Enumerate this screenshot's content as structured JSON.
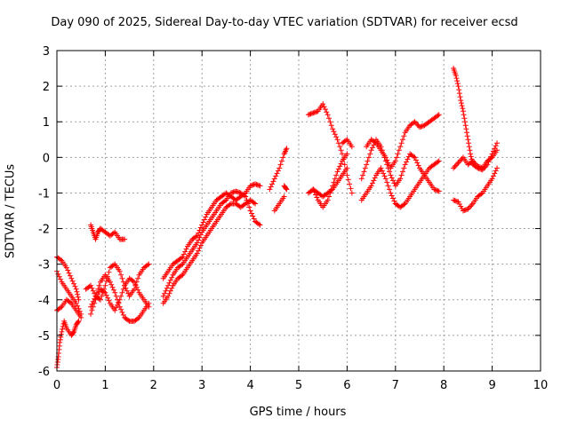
{
  "chart_data": {
    "type": "scatter",
    "title": "Day 090 of 2025, Sidereal Day-to-day VTEC variation (SDTVAR) for receiver ecsd",
    "xlabel": "GPS time / hours",
    "ylabel": "SDTVAR / TECUs",
    "xlim": [
      0,
      10
    ],
    "ylim": [
      -6,
      3
    ],
    "xticks": [
      "0",
      "1",
      "2",
      "3",
      "4",
      "5",
      "6",
      "7",
      "8",
      "9",
      "10"
    ],
    "yticks": [
      "-6",
      "-5",
      "-4",
      "-3",
      "-2",
      "-1",
      "0",
      "1",
      "2",
      "3"
    ],
    "grid": true,
    "marker": "plus",
    "color": "#ff0000",
    "series": [
      {
        "points": [
          [
            0.0,
            -2.8
          ],
          [
            0.1,
            -2.9
          ],
          [
            0.2,
            -3.1
          ],
          [
            0.3,
            -3.4
          ],
          [
            0.4,
            -3.7
          ],
          [
            0.45,
            -4.0
          ],
          [
            0.6,
            -3.7
          ],
          [
            0.7,
            -3.6
          ],
          [
            0.8,
            -3.9
          ],
          [
            0.9,
            -4.0
          ],
          [
            1.0,
            -3.6
          ],
          [
            1.1,
            -3.1
          ],
          [
            1.2,
            -3.0
          ],
          [
            1.3,
            -3.2
          ],
          [
            1.4,
            -3.6
          ],
          [
            1.5,
            -3.9
          ],
          [
            1.6,
            -3.7
          ],
          [
            1.7,
            -3.3
          ],
          [
            1.8,
            -3.1
          ],
          [
            1.9,
            -3.0
          ],
          [
            2.2,
            -3.4
          ],
          [
            2.3,
            -3.2
          ],
          [
            2.4,
            -3.0
          ],
          [
            2.5,
            -2.9
          ],
          [
            2.6,
            -2.8
          ],
          [
            2.7,
            -2.5
          ],
          [
            2.8,
            -2.3
          ],
          [
            2.9,
            -2.2
          ],
          [
            3.0,
            -1.9
          ],
          [
            3.1,
            -1.6
          ],
          [
            3.2,
            -1.4
          ],
          [
            3.3,
            -1.2
          ],
          [
            3.4,
            -1.1
          ],
          [
            3.5,
            -1.0
          ],
          [
            3.6,
            -1.1
          ],
          [
            3.7,
            -1.2
          ],
          [
            3.8,
            -1.1
          ],
          [
            3.9,
            -1.0
          ],
          [
            4.0,
            -0.8
          ],
          [
            4.1,
            -0.75
          ],
          [
            4.2,
            -0.8
          ],
          [
            4.4,
            -0.9
          ],
          [
            4.5,
            -0.6
          ],
          [
            4.6,
            -0.3
          ],
          [
            4.7,
            0.1
          ],
          [
            4.75,
            0.25
          ],
          [
            5.2,
            1.2
          ],
          [
            5.3,
            1.25
          ],
          [
            5.4,
            1.3
          ],
          [
            5.5,
            1.5
          ],
          [
            5.6,
            1.2
          ],
          [
            5.7,
            0.8
          ],
          [
            5.8,
            0.5
          ],
          [
            5.9,
            0.1
          ],
          [
            6.0,
            -0.5
          ],
          [
            6.1,
            -1.0
          ],
          [
            6.4,
            0.3
          ],
          [
            6.5,
            0.5
          ],
          [
            6.6,
            0.4
          ],
          [
            6.7,
            0.2
          ],
          [
            6.8,
            0.0
          ],
          [
            6.9,
            -0.3
          ],
          [
            7.0,
            -0.1
          ],
          [
            7.1,
            0.3
          ],
          [
            7.2,
            0.7
          ],
          [
            7.3,
            0.9
          ],
          [
            7.4,
            1.0
          ],
          [
            7.5,
            0.85
          ],
          [
            7.6,
            0.9
          ],
          [
            7.7,
            1.0
          ],
          [
            7.8,
            1.1
          ],
          [
            7.9,
            1.2
          ],
          [
            8.2,
            2.5
          ],
          [
            8.25,
            2.3
          ],
          [
            8.3,
            2.0
          ],
          [
            8.35,
            1.6
          ],
          [
            8.4,
            1.3
          ],
          [
            8.45,
            0.9
          ],
          [
            8.5,
            0.5
          ],
          [
            8.55,
            0.1
          ],
          [
            8.6,
            -0.2
          ],
          [
            8.7,
            -0.3
          ],
          [
            8.8,
            -0.35
          ],
          [
            8.9,
            -0.2
          ],
          [
            9.0,
            0.1
          ],
          [
            9.1,
            0.4
          ]
        ]
      },
      {
        "points": [
          [
            0.0,
            -3.2
          ],
          [
            0.1,
            -3.5
          ],
          [
            0.2,
            -3.7
          ],
          [
            0.3,
            -3.9
          ],
          [
            0.4,
            -4.1
          ],
          [
            0.5,
            -4.4
          ],
          [
            0.7,
            -4.2
          ],
          [
            0.8,
            -3.9
          ],
          [
            0.9,
            -3.5
          ],
          [
            1.0,
            -3.3
          ],
          [
            1.1,
            -3.5
          ],
          [
            1.2,
            -3.8
          ],
          [
            1.3,
            -4.2
          ],
          [
            1.4,
            -4.5
          ],
          [
            1.5,
            -4.6
          ],
          [
            1.6,
            -4.6
          ],
          [
            1.7,
            -4.5
          ],
          [
            1.8,
            -4.3
          ],
          [
            1.9,
            -4.1
          ],
          [
            2.2,
            -4.1
          ],
          [
            2.3,
            -3.9
          ],
          [
            2.4,
            -3.6
          ],
          [
            2.5,
            -3.4
          ],
          [
            2.6,
            -3.3
          ],
          [
            2.7,
            -3.1
          ],
          [
            2.8,
            -2.9
          ],
          [
            2.9,
            -2.7
          ],
          [
            3.0,
            -2.4
          ],
          [
            3.1,
            -2.2
          ],
          [
            3.2,
            -2.0
          ],
          [
            3.3,
            -1.8
          ],
          [
            3.4,
            -1.6
          ],
          [
            3.5,
            -1.4
          ],
          [
            3.6,
            -1.3
          ],
          [
            3.7,
            -1.3
          ],
          [
            3.8,
            -1.4
          ],
          [
            3.9,
            -1.3
          ],
          [
            4.0,
            -1.2
          ],
          [
            4.1,
            -1.3
          ],
          [
            4.5,
            -1.5
          ],
          [
            4.6,
            -1.3
          ],
          [
            4.7,
            -1.1
          ],
          [
            5.2,
            -1.0
          ],
          [
            5.3,
            -0.9
          ],
          [
            5.4,
            -1.0
          ],
          [
            5.5,
            -1.1
          ],
          [
            5.6,
            -1.0
          ],
          [
            5.7,
            -0.9
          ],
          [
            5.8,
            -0.7
          ],
          [
            5.9,
            -0.5
          ],
          [
            6.0,
            -0.3
          ],
          [
            6.3,
            -1.2
          ],
          [
            6.4,
            -1.0
          ],
          [
            6.5,
            -0.8
          ],
          [
            6.6,
            -0.5
          ],
          [
            6.7,
            -0.3
          ],
          [
            6.8,
            -0.6
          ],
          [
            6.9,
            -1.0
          ],
          [
            7.0,
            -1.3
          ],
          [
            7.1,
            -1.4
          ],
          [
            7.2,
            -1.3
          ],
          [
            7.3,
            -1.1
          ],
          [
            7.4,
            -0.9
          ],
          [
            7.5,
            -0.7
          ],
          [
            7.6,
            -0.5
          ],
          [
            7.7,
            -0.3
          ],
          [
            7.8,
            -0.2
          ],
          [
            7.9,
            -0.1
          ],
          [
            8.2,
            -1.2
          ],
          [
            8.3,
            -1.25
          ],
          [
            8.4,
            -1.5
          ],
          [
            8.5,
            -1.45
          ],
          [
            8.6,
            -1.3
          ],
          [
            8.7,
            -1.1
          ],
          [
            8.8,
            -1.0
          ],
          [
            8.9,
            -0.8
          ],
          [
            9.0,
            -0.6
          ],
          [
            9.1,
            -0.3
          ]
        ]
      },
      {
        "points": [
          [
            0.0,
            -4.3
          ],
          [
            0.1,
            -4.2
          ],
          [
            0.2,
            -4.0
          ],
          [
            0.3,
            -4.1
          ],
          [
            0.4,
            -4.3
          ],
          [
            0.5,
            -4.5
          ],
          [
            0.7,
            -4.4
          ],
          [
            0.8,
            -4.0
          ],
          [
            0.9,
            -3.7
          ],
          [
            1.0,
            -3.8
          ],
          [
            1.1,
            -4.1
          ],
          [
            1.2,
            -4.3
          ],
          [
            1.3,
            -4.0
          ],
          [
            1.4,
            -3.6
          ],
          [
            1.5,
            -3.4
          ],
          [
            1.6,
            -3.5
          ],
          [
            1.7,
            -3.8
          ],
          [
            1.8,
            -4.0
          ],
          [
            1.9,
            -4.2
          ],
          [
            2.2,
            -3.9
          ],
          [
            2.3,
            -3.6
          ],
          [
            2.4,
            -3.3
          ],
          [
            2.5,
            -3.1
          ],
          [
            2.6,
            -3.0
          ],
          [
            2.7,
            -2.8
          ],
          [
            2.8,
            -2.6
          ],
          [
            2.9,
            -2.4
          ],
          [
            3.0,
            -2.1
          ],
          [
            3.1,
            -1.9
          ],
          [
            3.2,
            -1.7
          ],
          [
            3.3,
            -1.5
          ],
          [
            3.4,
            -1.3
          ],
          [
            3.5,
            -1.2
          ],
          [
            3.6,
            -1.0
          ],
          [
            3.7,
            -0.95
          ],
          [
            3.8,
            -1.0
          ],
          [
            3.9,
            -1.1
          ],
          [
            4.0,
            -1.5
          ],
          [
            4.1,
            -1.8
          ],
          [
            4.2,
            -1.9
          ],
          [
            5.3,
            -0.9
          ],
          [
            5.4,
            -1.2
          ],
          [
            5.5,
            -1.4
          ],
          [
            5.6,
            -1.2
          ],
          [
            5.7,
            -0.8
          ],
          [
            5.8,
            -0.4
          ],
          [
            5.9,
            -0.1
          ],
          [
            6.0,
            0.1
          ],
          [
            6.3,
            -0.6
          ],
          [
            6.4,
            -0.2
          ],
          [
            6.5,
            0.2
          ],
          [
            6.6,
            0.5
          ],
          [
            6.7,
            0.3
          ],
          [
            6.8,
            -0.1
          ],
          [
            6.9,
            -0.5
          ],
          [
            7.0,
            -0.8
          ],
          [
            7.1,
            -0.6
          ],
          [
            7.2,
            -0.2
          ],
          [
            7.3,
            0.1
          ],
          [
            7.4,
            0.0
          ],
          [
            7.5,
            -0.3
          ],
          [
            7.6,
            -0.5
          ],
          [
            7.7,
            -0.7
          ],
          [
            7.8,
            -0.9
          ],
          [
            7.9,
            -0.95
          ],
          [
            8.2,
            -0.3
          ],
          [
            8.3,
            -0.15
          ],
          [
            8.4,
            0.0
          ],
          [
            8.5,
            -0.2
          ],
          [
            8.6,
            -0.1
          ],
          [
            8.7,
            -0.25
          ],
          [
            8.8,
            -0.3
          ],
          [
            8.9,
            -0.1
          ],
          [
            9.0,
            0.0
          ],
          [
            9.1,
            0.2
          ]
        ]
      },
      {
        "points": [
          [
            0.0,
            -5.9
          ],
          [
            0.03,
            -5.6
          ],
          [
            0.06,
            -5.2
          ],
          [
            0.1,
            -4.9
          ],
          [
            0.15,
            -4.6
          ],
          [
            0.2,
            -4.8
          ],
          [
            0.3,
            -5.0
          ],
          [
            0.35,
            -4.9
          ],
          [
            0.4,
            -4.7
          ],
          [
            0.45,
            -4.6
          ],
          [
            0.7,
            -1.9
          ],
          [
            0.75,
            -2.1
          ],
          [
            0.8,
            -2.3
          ],
          [
            0.85,
            -2.1
          ],
          [
            0.9,
            -2.0
          ],
          [
            1.0,
            -2.1
          ],
          [
            1.1,
            -2.2
          ],
          [
            1.2,
            -2.1
          ],
          [
            1.3,
            -2.3
          ],
          [
            1.4,
            -2.3
          ],
          [
            4.7,
            -0.8
          ],
          [
            4.75,
            -0.9
          ],
          [
            5.9,
            0.4
          ],
          [
            6.0,
            0.5
          ],
          [
            6.1,
            0.3
          ]
        ]
      }
    ]
  }
}
